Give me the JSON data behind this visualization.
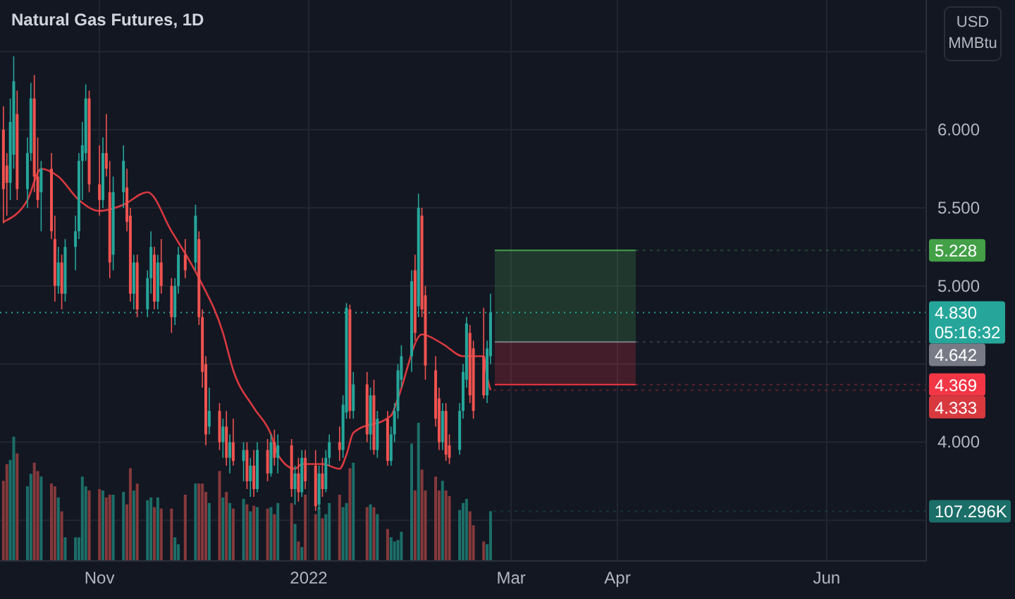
{
  "chart_data": {
    "type": "candlestick",
    "title": "Natural Gas Futures, 1D",
    "ylabel": "USD MMBtu",
    "grid": true,
    "xlim": [
      "2021-10-03",
      "2022-06-30"
    ],
    "xticks": [
      {
        "value": "2021-11-01",
        "label": "Nov"
      },
      {
        "value": "2022-01-01",
        "label": "2022"
      },
      {
        "value": "2022-03-01",
        "label": "Mar"
      },
      {
        "value": "2022-04-01",
        "label": "Apr"
      },
      {
        "value": "2022-06-01",
        "label": "Jun"
      }
    ],
    "ylim": [
      3.24,
      6.83
    ],
    "yticks": [
      {
        "value": 3.5,
        "label": null
      },
      {
        "value": 4,
        "label": "4.000"
      },
      {
        "value": 4.5,
        "label": null
      },
      {
        "value": 5,
        "label": "5.000"
      },
      {
        "value": 5.5,
        "label": "5.500"
      },
      {
        "value": 6,
        "label": "6.000"
      },
      {
        "value": 6.5,
        "label": null
      }
    ],
    "y2lim": [
      0,
      1210
    ],
    "x": [
      "2021-10-04",
      "2021-10-05",
      "2021-10-06",
      "2021-10-07",
      "2021-10-08",
      "2021-10-11",
      "2021-10-12",
      "2021-10-13",
      "2021-10-14",
      "2021-10-15",
      "2021-10-18",
      "2021-10-19",
      "2021-10-20",
      "2021-10-21",
      "2021-10-22",
      "2021-10-25",
      "2021-10-26",
      "2021-10-27",
      "2021-10-28",
      "2021-10-29",
      "2021-11-01",
      "2021-11-02",
      "2021-11-03",
      "2021-11-04",
      "2021-11-05",
      "2021-11-08",
      "2021-11-09",
      "2021-11-10",
      "2021-11-11",
      "2021-11-12",
      "2021-11-15",
      "2021-11-16",
      "2021-11-17",
      "2021-11-18",
      "2021-11-19",
      "2021-11-22",
      "2021-11-23",
      "2021-11-24",
      "2021-11-26",
      "2021-11-29",
      "2021-11-30",
      "2021-12-01",
      "2021-12-02",
      "2021-12-03",
      "2021-12-06",
      "2021-12-07",
      "2021-12-08",
      "2021-12-09",
      "2021-12-10",
      "2021-12-13",
      "2021-12-14",
      "2021-12-15",
      "2021-12-16",
      "2021-12-17",
      "2021-12-20",
      "2021-12-21",
      "2021-12-22",
      "2021-12-23",
      "2021-12-27",
      "2021-12-28",
      "2021-12-29",
      "2021-12-30",
      "2021-12-31",
      "2022-01-03",
      "2022-01-04",
      "2022-01-05",
      "2022-01-06",
      "2022-01-07",
      "2022-01-10",
      "2022-01-11",
      "2022-01-12",
      "2022-01-13",
      "2022-01-14",
      "2022-01-18",
      "2022-01-19",
      "2022-01-20",
      "2022-01-21",
      "2022-01-24",
      "2022-01-25",
      "2022-01-26",
      "2022-01-27",
      "2022-01-28",
      "2022-01-31",
      "2022-02-01",
      "2022-02-02",
      "2022-02-03",
      "2022-02-04",
      "2022-02-07",
      "2022-02-08",
      "2022-02-09",
      "2022-02-10",
      "2022-02-11",
      "2022-02-14",
      "2022-02-15",
      "2022-02-16",
      "2022-02-17",
      "2022-02-18",
      "2022-02-21",
      "2022-02-22",
      "2022-02-23"
    ],
    "ohlc": [
      [
        6.0,
        6.15,
        5.4,
        5.62
      ],
      [
        5.77,
        5.85,
        5.45,
        5.66
      ],
      [
        5.66,
        6.2,
        5.55,
        6.05
      ],
      [
        5.84,
        6.47,
        5.75,
        6.31
      ],
      [
        6.1,
        6.25,
        5.55,
        5.62
      ],
      [
        5.62,
        5.95,
        5.5,
        5.85
      ],
      [
        5.85,
        6.3,
        5.8,
        6.2
      ],
      [
        6.2,
        6.35,
        5.6,
        5.7
      ],
      [
        5.7,
        5.95,
        5.5,
        5.55
      ],
      [
        5.6,
        5.8,
        5.35,
        5.75
      ],
      [
        5.75,
        5.85,
        5.3,
        5.35
      ],
      [
        5.3,
        5.45,
        4.9,
        5.0
      ],
      [
        5.0,
        5.25,
        4.95,
        5.15
      ],
      [
        5.15,
        5.2,
        4.85,
        4.95
      ],
      [
        4.95,
        5.3,
        4.9,
        5.25
      ],
      [
        5.25,
        5.45,
        5.1,
        5.35
      ],
      [
        5.35,
        5.85,
        5.3,
        5.8
      ],
      [
        5.8,
        6.05,
        5.55,
        5.9
      ],
      [
        5.85,
        6.29,
        5.8,
        6.2
      ],
      [
        6.2,
        6.25,
        5.6,
        5.65
      ],
      [
        5.65,
        5.9,
        5.45,
        5.55
      ],
      [
        5.55,
        5.95,
        5.5,
        5.85
      ],
      [
        5.85,
        6.1,
        5.7,
        5.75
      ],
      [
        5.6,
        5.8,
        5.05,
        5.15
      ],
      [
        5.2,
        5.7,
        5.1,
        5.6
      ],
      [
        5.6,
        5.9,
        5.5,
        5.8
      ],
      [
        5.63,
        5.75,
        5.35,
        5.41
      ],
      [
        5.45,
        5.5,
        4.9,
        4.95
      ],
      [
        4.95,
        5.2,
        4.85,
        5.15
      ],
      [
        5.15,
        5.2,
        4.8,
        4.85
      ],
      [
        4.85,
        5.1,
        4.8,
        5.05
      ],
      [
        5.05,
        5.35,
        4.95,
        5.25
      ],
      [
        5.2,
        5.25,
        4.85,
        4.9
      ],
      [
        4.9,
        5.2,
        4.85,
        5.15
      ],
      [
        5.15,
        5.3,
        4.95,
        5.0
      ],
      [
        5.0,
        5.05,
        4.7,
        4.8
      ],
      [
        4.8,
        5.05,
        4.75,
        5.0
      ],
      [
        5.0,
        5.25,
        4.95,
        5.2
      ],
      [
        5.2,
        5.3,
        5.05,
        5.1
      ],
      [
        5.15,
        5.52,
        5.1,
        5.45
      ],
      [
        5.3,
        5.35,
        4.75,
        4.8
      ],
      [
        4.8,
        4.85,
        4.35,
        4.45
      ],
      [
        4.5,
        4.55,
        3.98,
        4.05
      ],
      [
        4.1,
        4.35,
        4.05,
        4.2
      ],
      [
        4.2,
        4.25,
        3.95,
        4.0
      ],
      [
        4.0,
        4.15,
        3.9,
        4.1
      ],
      [
        4.1,
        4.2,
        3.85,
        3.9
      ],
      [
        3.9,
        4.05,
        3.8,
        4.0
      ],
      [
        4.0,
        4.15,
        3.85,
        3.88
      ],
      [
        3.88,
        4.0,
        3.75,
        3.95
      ],
      [
        3.95,
        4.0,
        3.7,
        3.75
      ],
      [
        3.75,
        3.9,
        3.65,
        3.85
      ],
      [
        3.85,
        3.95,
        3.65,
        3.7
      ],
      [
        3.7,
        4.0,
        3.68,
        3.95
      ],
      [
        3.95,
        4.02,
        3.75,
        3.8
      ],
      [
        3.8,
        4.05,
        3.78,
        4.0
      ],
      [
        4.0,
        4.08,
        3.85,
        3.9
      ],
      [
        3.9,
        4.05,
        3.8,
        3.98
      ],
      [
        3.98,
        4.02,
        3.65,
        3.7
      ],
      [
        3.7,
        3.85,
        3.6,
        3.8
      ],
      [
        3.8,
        3.9,
        3.62,
        3.68
      ],
      [
        3.68,
        3.95,
        3.65,
        3.9
      ],
      [
        3.9,
        3.95,
        3.7,
        3.75
      ],
      [
        3.85,
        3.95,
        3.56,
        3.59
      ],
      [
        3.6,
        3.85,
        3.57,
        3.8
      ],
      [
        3.8,
        3.9,
        3.65,
        3.7
      ],
      [
        3.7,
        3.95,
        3.68,
        3.9
      ],
      [
        3.9,
        4.05,
        3.85,
        4.0
      ],
      [
        4.0,
        4.1,
        3.88,
        3.95
      ],
      [
        3.95,
        4.3,
        3.9,
        4.24
      ],
      [
        4.19,
        4.89,
        4.15,
        4.86
      ],
      [
        4.85,
        4.88,
        4.15,
        4.2
      ],
      [
        4.2,
        4.45,
        4.15,
        4.37
      ],
      [
        4.37,
        4.45,
        4.0,
        4.05
      ],
      [
        4.05,
        4.35,
        3.95,
        4.3
      ],
      [
        4.3,
        4.4,
        3.92,
        3.95
      ],
      [
        3.95,
        4.2,
        3.9,
        4.15
      ],
      [
        4.15,
        4.2,
        3.85,
        3.88
      ],
      [
        3.88,
        4.1,
        3.85,
        4.05
      ],
      [
        4.05,
        4.25,
        4.0,
        4.2
      ],
      [
        4.2,
        4.5,
        4.15,
        4.46
      ],
      [
        4.4,
        4.62,
        4.35,
        4.55
      ],
      [
        4.55,
        5.1,
        4.45,
        5.03
      ],
      [
        5.1,
        5.2,
        4.65,
        4.7
      ],
      [
        4.87,
        5.59,
        4.8,
        5.5
      ],
      [
        5.45,
        5.5,
        4.8,
        4.85
      ],
      [
        4.94,
        5.0,
        4.4,
        4.49
      ],
      [
        4.46,
        4.55,
        4.1,
        4.15
      ],
      [
        4.28,
        4.35,
        3.95,
        4.0
      ],
      [
        4.0,
        4.25,
        3.95,
        4.2
      ],
      [
        4.2,
        4.25,
        3.88,
        3.92
      ],
      [
        3.98,
        4.05,
        3.86,
        3.9
      ],
      [
        3.95,
        4.25,
        3.92,
        4.2
      ],
      [
        4.2,
        4.5,
        4.15,
        4.45
      ],
      [
        4.4,
        4.8,
        4.35,
        4.76
      ],
      [
        4.7,
        4.75,
        4.25,
        4.3
      ],
      [
        4.6,
        4.65,
        4.15,
        4.2
      ],
      [
        4.55,
        4.86,
        4.28,
        4.3
      ],
      [
        4.3,
        4.65,
        4.25,
        4.6
      ],
      [
        4.55,
        4.95,
        4.5,
        4.83
      ]
    ],
    "colors": [
      "#ef5350",
      "#ef5350",
      "#26a69a",
      "#26a69a",
      "#ef5350",
      "#26a69a",
      "#26a69a",
      "#ef5350",
      "#ef5350",
      "#26a69a",
      "#ef5350",
      "#ef5350",
      "#26a69a",
      "#ef5350",
      "#26a69a",
      "#26a69a",
      "#26a69a",
      "#26a69a",
      "#26a69a",
      "#ef5350",
      "#ef5350",
      "#26a69a",
      "#ef5350",
      "#ef5350",
      "#26a69a",
      "#26a69a",
      "#ef5350",
      "#ef5350",
      "#26a69a",
      "#ef5350",
      "#26a69a",
      "#26a69a",
      "#ef5350",
      "#26a69a",
      "#ef5350",
      "#ef5350",
      "#26a69a",
      "#26a69a",
      "#ef5350",
      "#26a69a",
      "#ef5350",
      "#ef5350",
      "#ef5350",
      "#26a69a",
      "#ef5350",
      "#26a69a",
      "#ef5350",
      "#26a69a",
      "#ef5350",
      "#26a69a",
      "#ef5350",
      "#26a69a",
      "#ef5350",
      "#26a69a",
      "#ef5350",
      "#26a69a",
      "#ef5350",
      "#26a69a",
      "#ef5350",
      "#26a69a",
      "#ef5350",
      "#26a69a",
      "#ef5350",
      "#ef5350",
      "#26a69a",
      "#ef5350",
      "#26a69a",
      "#26a69a",
      "#ef5350",
      "#26a69a",
      "#26a69a",
      "#ef5350",
      "#26a69a",
      "#ef5350",
      "#26a69a",
      "#ef5350",
      "#26a69a",
      "#ef5350",
      "#26a69a",
      "#26a69a",
      "#26a69a",
      "#26a69a",
      "#26a69a",
      "#ef5350",
      "#26a69a",
      "#ef5350",
      "#ef5350",
      "#ef5350",
      "#ef5350",
      "#26a69a",
      "#ef5350",
      "#ef5350",
      "#26a69a",
      "#26a69a",
      "#26a69a",
      "#ef5350",
      "#ef5350",
      "#ef5350",
      "#26a69a",
      "#26a69a"
    ],
    "series": [
      {
        "type": "bar",
        "axis": "y2",
        "values": [
          173,
          209,
          218,
          268,
          232,
          161,
          188,
          212,
          194,
          182,
          167,
          161,
          137,
          107,
          51,
          51,
          51,
          182,
          161,
          152,
          155,
          152,
          137,
          143,
          143,
          149,
          122,
          200,
          152,
          167,
          131,
          137,
          116,
          137,
          113,
          113,
          51,
          36,
          143,
          167,
          167,
          167,
          149,
          125,
          194,
          137,
          149,
          125,
          113,
          134,
          122,
          107,
          119,
          116,
          113,
          116,
          101,
          125,
          125,
          80,
          42,
          30,
          143,
          101,
          116,
          92,
          101,
          125,
          143,
          116,
          125,
          200,
          212,
          116,
          122,
          116,
          101,
          69,
          51,
          42,
          45,
          63,
          253,
          152,
          298,
          197,
          152,
          182,
          152,
          173,
          152,
          140,
          110,
          125,
          134,
          107,
          77,
          42,
          36,
          107.296
        ],
        "colors": [
          "#85393b",
          "#85393b",
          "#1c6e68",
          "#1c6e68",
          "#85393b",
          "#1c6e68",
          "#1c6e68",
          "#85393b",
          "#85393b",
          "#1c6e68",
          "#85393b",
          "#85393b",
          "#1c6e68",
          "#85393b",
          "#1c6e68",
          "#1c6e68",
          "#1c6e68",
          "#1c6e68",
          "#1c6e68",
          "#85393b",
          "#85393b",
          "#1c6e68",
          "#85393b",
          "#85393b",
          "#1c6e68",
          "#1c6e68",
          "#85393b",
          "#85393b",
          "#1c6e68",
          "#85393b",
          "#1c6e68",
          "#1c6e68",
          "#85393b",
          "#1c6e68",
          "#85393b",
          "#85393b",
          "#1c6e68",
          "#1c6e68",
          "#85393b",
          "#1c6e68",
          "#85393b",
          "#85393b",
          "#85393b",
          "#1c6e68",
          "#85393b",
          "#1c6e68",
          "#85393b",
          "#1c6e68",
          "#85393b",
          "#1c6e68",
          "#85393b",
          "#1c6e68",
          "#85393b",
          "#1c6e68",
          "#85393b",
          "#1c6e68",
          "#85393b",
          "#1c6e68",
          "#85393b",
          "#1c6e68",
          "#85393b",
          "#1c6e68",
          "#85393b",
          "#85393b",
          "#1c6e68",
          "#85393b",
          "#1c6e68",
          "#1c6e68",
          "#85393b",
          "#1c6e68",
          "#1c6e68",
          "#85393b",
          "#1c6e68",
          "#85393b",
          "#1c6e68",
          "#85393b",
          "#1c6e68",
          "#85393b",
          "#1c6e68",
          "#1c6e68",
          "#1c6e68",
          "#1c6e68",
          "#1c6e68",
          "#85393b",
          "#1c6e68",
          "#85393b",
          "#85393b",
          "#85393b",
          "#85393b",
          "#1c6e68",
          "#85393b",
          "#85393b",
          "#1c6e68",
          "#1c6e68",
          "#1c6e68",
          "#85393b",
          "#85393b",
          "#85393b",
          "#1c6e68",
          "#1c6e68"
        ],
        "value_labels": [
          null,
          null,
          null,
          null,
          null,
          null,
          null,
          null,
          null,
          null,
          null,
          null,
          null,
          null,
          null,
          null,
          null,
          null,
          null,
          null,
          null,
          null,
          null,
          null,
          null,
          null,
          null,
          null,
          null,
          null,
          null,
          null,
          null,
          null,
          null,
          null,
          null,
          null,
          null,
          null,
          null,
          null,
          null,
          null,
          null,
          null,
          null,
          null,
          null,
          null,
          null,
          null,
          null,
          null,
          null,
          null,
          null,
          null,
          null,
          null,
          null,
          null,
          null,
          null,
          null,
          null,
          null,
          null,
          null,
          null,
          null,
          null,
          null,
          null,
          null,
          null,
          null,
          null,
          null,
          null,
          null,
          null,
          null,
          null,
          null,
          null,
          null,
          null,
          null,
          null,
          null,
          null,
          null,
          null,
          null,
          null,
          null,
          null,
          null,
          "107.296K"
        ]
      },
      {
        "type": "line",
        "color": "#d8393f",
        "x": [
          "2021-10-04",
          "2021-10-11",
          "2021-10-15",
          "2021-10-20",
          "2021-10-26",
          "2021-11-01",
          "2021-11-08",
          "2021-11-15",
          "2021-11-22",
          "2021-11-30",
          "2021-12-07",
          "2021-12-10",
          "2021-12-16",
          "2021-12-21",
          "2021-12-23",
          "2021-12-28",
          "2021-12-30",
          "2022-01-05",
          "2022-01-10",
          "2022-01-12",
          "2022-01-14",
          "2022-01-25",
          "2022-01-27",
          "2022-02-03",
          "2022-02-09",
          "2022-02-15",
          "2022-02-21",
          "2022-02-22",
          "2022-02-23"
        ],
        "values": [
          5.41,
          5.55,
          5.75,
          5.7,
          5.55,
          5.48,
          5.52,
          5.6,
          5.35,
          5.05,
          4.7,
          4.46,
          4.22,
          4.05,
          3.92,
          3.83,
          3.86,
          3.86,
          3.83,
          3.92,
          4.06,
          4.17,
          4.28,
          4.69,
          4.63,
          4.55,
          4.55,
          4.42,
          4.333
        ],
        "value_labels": [
          null,
          null,
          null,
          null,
          null,
          null,
          null,
          null,
          null,
          null,
          null,
          null,
          null,
          null,
          null,
          null,
          null,
          null,
          null,
          null,
          null,
          null,
          null,
          null,
          null,
          null,
          null,
          null,
          "4.333"
        ]
      }
    ],
    "bands": [
      {
        "axis": "y",
        "from": 4.642,
        "to": 5.228,
        "color": "#4caf50"
      },
      {
        "axis": "y",
        "from": 4.369,
        "to": 4.642,
        "color": "#f23645"
      }
    ],
    "ref_lines": [
      {
        "axis": "y",
        "value": 5.228,
        "label": "5.228",
        "color": "#43a047"
      },
      {
        "axis": "y",
        "value": 4.83,
        "label": "4.830",
        "color": "#26a69a",
        "line_style": "dotted"
      },
      {
        "axis": "y",
        "value": 4.642,
        "label": "4.642",
        "color": "#787b86"
      },
      {
        "axis": "y",
        "value": 4.369,
        "label": "4.369",
        "color": "#f23645"
      }
    ],
    "annotations": [
      "05:16:32"
    ]
  }
}
